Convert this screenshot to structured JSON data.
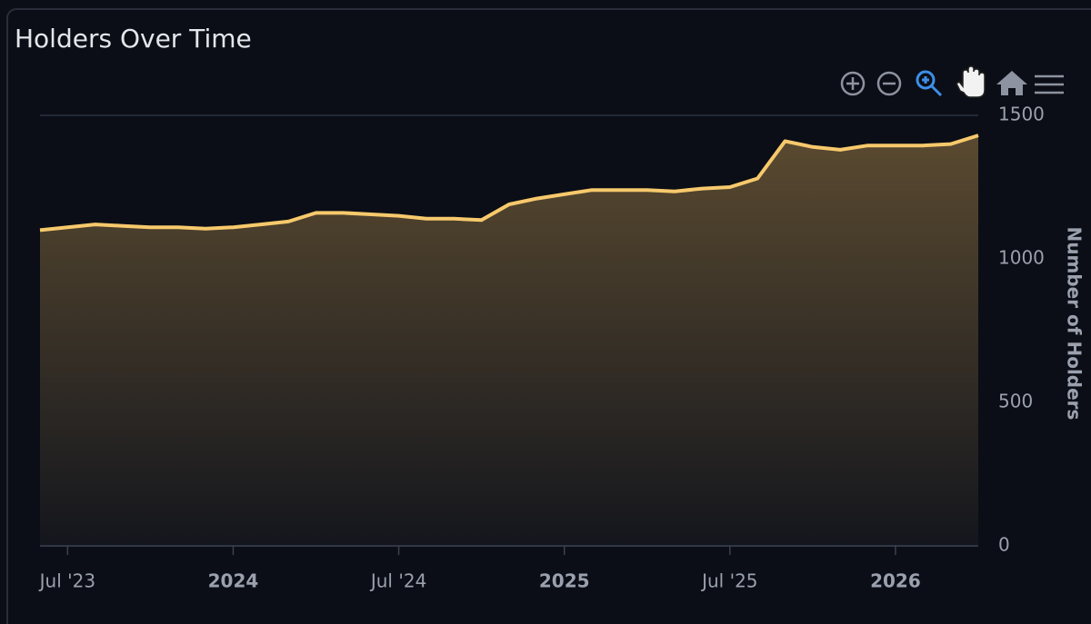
{
  "chart_data": {
    "type": "area",
    "title": "Holders Over Time",
    "y_label": "Number of Holders",
    "color": "#f7c96c",
    "x": [
      "2023-06",
      "2023-07",
      "2023-08",
      "2023-09",
      "2023-10",
      "2023-11",
      "2023-12",
      "2024-01",
      "2024-02",
      "2024-03",
      "2024-04",
      "2024-05",
      "2024-06",
      "2024-07",
      "2024-08",
      "2024-09",
      "2024-10",
      "2024-11",
      "2024-12",
      "2025-01",
      "2025-02",
      "2025-03",
      "2025-04",
      "2025-05",
      "2025-06",
      "2025-07",
      "2025-08",
      "2025-09",
      "2025-10",
      "2025-11",
      "2025-12",
      "2026-01",
      "2026-02",
      "2026-03",
      "2026-04"
    ],
    "values": [
      1100,
      1110,
      1120,
      1115,
      1110,
      1110,
      1105,
      1110,
      1120,
      1130,
      1160,
      1160,
      1155,
      1150,
      1140,
      1140,
      1135,
      1190,
      1210,
      1225,
      1240,
      1240,
      1240,
      1235,
      1245,
      1250,
      1280,
      1410,
      1390,
      1380,
      1395,
      1395,
      1395,
      1400,
      1430
    ],
    "xlim": [
      "2023-06",
      "2026-04"
    ],
    "xticks": [
      {
        "value": "2023-07",
        "label": "Jul '23"
      },
      {
        "value": "2024-01",
        "label": "2024"
      },
      {
        "value": "2024-07",
        "label": "Jul '24"
      },
      {
        "value": "2025-01",
        "label": "2025"
      },
      {
        "value": "2025-07",
        "label": "Jul '25"
      },
      {
        "value": "2026-01",
        "label": "2026"
      }
    ],
    "ylim": [
      0,
      1500
    ],
    "yticks": [
      0,
      500,
      1000,
      1500
    ],
    "grid": true
  }
}
